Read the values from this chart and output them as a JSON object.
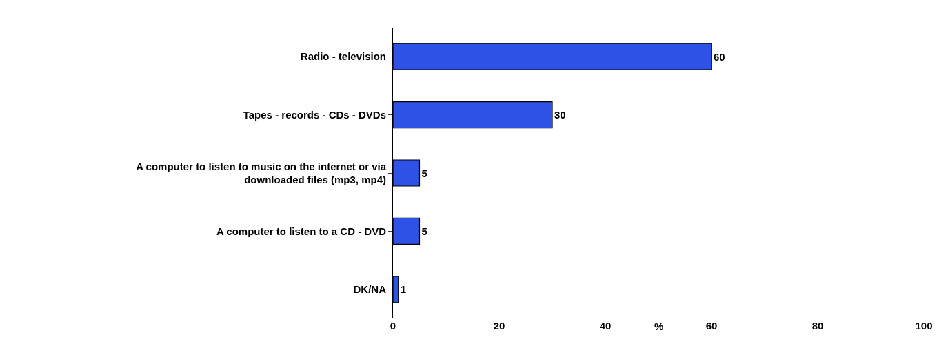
{
  "chart_data": {
    "type": "bar",
    "orientation": "horizontal",
    "xlabel": "%",
    "categories": [
      "Radio - television",
      "Tapes - records - CDs - DVDs",
      "A computer to listen to music on the internet or via\ndownloaded files (mp3, mp4)",
      "A computer to listen to a CD - DVD",
      "DK/NA"
    ],
    "values": [
      60,
      30,
      5,
      5,
      1
    ],
    "color": "#2f52e6",
    "data_labels": true,
    "xlim": [
      0,
      100
    ],
    "xticks": [
      0,
      20,
      40,
      60,
      80,
      100
    ]
  }
}
